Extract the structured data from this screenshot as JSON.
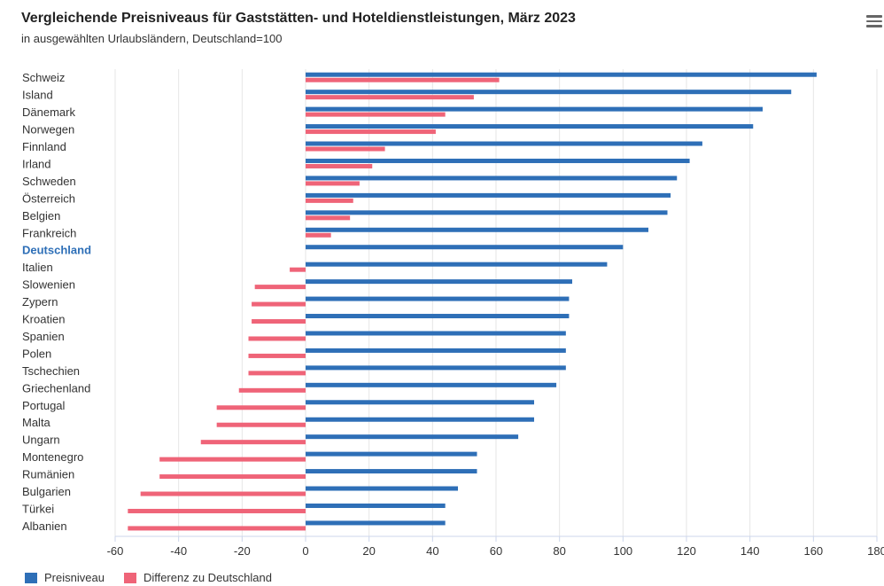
{
  "header": {
    "title": "Vergleichende Preisniveaus für Gaststätten- und Hoteldienstleistungen, März 2023",
    "subtitle": "in ausgewählten Urlaubsländern, Deutschland=100"
  },
  "menu_icon": "hamburger-menu-icon",
  "colors": {
    "preisniveau": "#2e6fb7",
    "differenz": "#ef6478",
    "highlight_label": "#2e6fb7"
  },
  "legend": {
    "items": [
      {
        "label": "Preisniveau",
        "color": "#2e6fb7"
      },
      {
        "label": "Differenz zu Deutschland",
        "color": "#ef6478"
      }
    ],
    "placement": "bottom-left"
  },
  "chart_data": {
    "type": "bar",
    "orientation": "horizontal",
    "title": "Vergleichende Preisniveaus für Gaststätten- und Hoteldienstleistungen, März 2023",
    "subtitle": "in ausgewählten Urlaubsländern, Deutschland=100",
    "categories": [
      "Schweiz",
      "Island",
      "Dänemark",
      "Norwegen",
      "Finnland",
      "Irland",
      "Schweden",
      "Österreich",
      "Belgien",
      "Frankreich",
      "Deutschland",
      "Italien",
      "Slowenien",
      "Zypern",
      "Kroatien",
      "Spanien",
      "Polen",
      "Tschechien",
      "Griechenland",
      "Portugal",
      "Malta",
      "Ungarn",
      "Montenegro",
      "Rumänien",
      "Bulgarien",
      "Türkei",
      "Albanien"
    ],
    "highlight_category": "Deutschland",
    "series": [
      {
        "name": "Preisniveau",
        "values": [
          161,
          153,
          144,
          141,
          125,
          121,
          117,
          115,
          114,
          108,
          100,
          95,
          84,
          83,
          83,
          82,
          82,
          82,
          79,
          72,
          72,
          67,
          54,
          54,
          48,
          44,
          44
        ]
      },
      {
        "name": "Differenz zu Deutschland",
        "values": [
          61,
          53,
          44,
          41,
          25,
          21,
          17,
          15,
          14,
          8,
          0,
          -5,
          -16,
          -17,
          -17,
          -18,
          -18,
          -18,
          -21,
          -28,
          -28,
          -33,
          -46,
          -46,
          -52,
          -56,
          -56
        ]
      }
    ],
    "xlim": [
      -60,
      180
    ],
    "xticks": [
      -60,
      -40,
      -20,
      0,
      20,
      40,
      60,
      80,
      100,
      120,
      140,
      160,
      180
    ],
    "grid": true,
    "legend_placement": "bottom-left"
  }
}
